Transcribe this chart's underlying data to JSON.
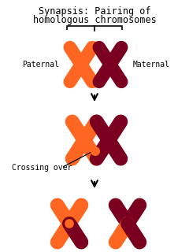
{
  "title_line1": "Synapsis: Pairing of",
  "title_line2": "homologous chromosomes",
  "bg_color": "#ffffff",
  "orange": "#FF6622",
  "dark_red": "#7B0020",
  "label_paternal": "Paternal",
  "label_maternal": "Maternal",
  "label_crossing": "Crossing over",
  "figsize": [
    2.4,
    3.2
  ],
  "dpi": 100
}
